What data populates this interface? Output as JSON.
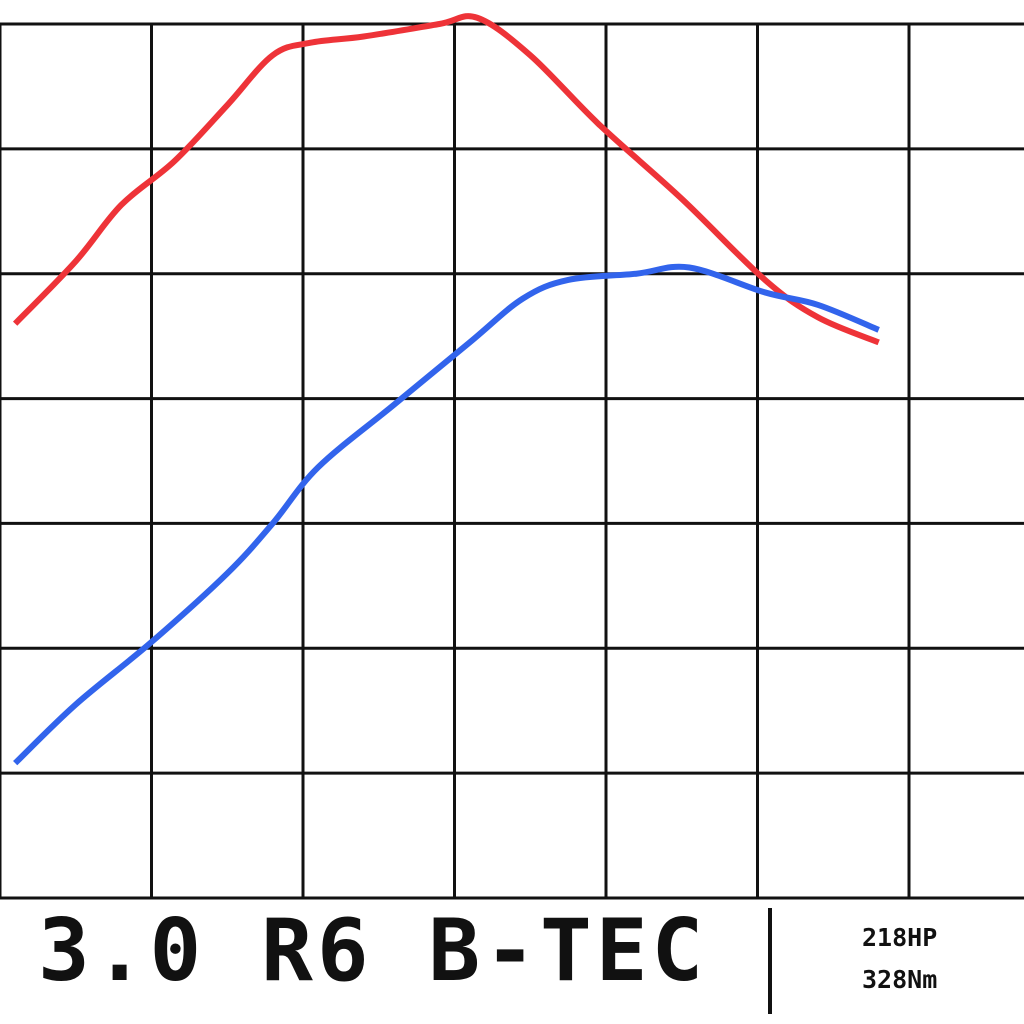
{
  "title": "3.0 R6 B-TEC",
  "specs": {
    "power": "218HP",
    "torque": "328Nm"
  },
  "colors": {
    "grid": "#111111",
    "torque_line": "#ee3338",
    "power_line": "#3264ec",
    "background": "#ffffff"
  },
  "chart_data": {
    "type": "line",
    "grid": true,
    "grid_columns": 7,
    "grid_rows": 7,
    "xlim": [
      0,
      6.8
    ],
    "ylim": [
      0,
      7
    ],
    "series": [
      {
        "key": "torque",
        "color": "#ee3338",
        "points": [
          [
            0.1,
            4.6
          ],
          [
            0.5,
            5.1
          ],
          [
            0.8,
            5.55
          ],
          [
            1.15,
            5.9
          ],
          [
            1.5,
            6.35
          ],
          [
            1.8,
            6.75
          ],
          [
            2.05,
            6.85
          ],
          [
            2.4,
            6.9
          ],
          [
            2.9,
            7.0
          ],
          [
            3.15,
            7.05
          ],
          [
            3.5,
            6.75
          ],
          [
            3.95,
            6.2
          ],
          [
            4.5,
            5.6
          ],
          [
            5.05,
            4.95
          ],
          [
            5.4,
            4.65
          ],
          [
            5.8,
            4.45
          ]
        ]
      },
      {
        "key": "power",
        "color": "#3264ec",
        "points": [
          [
            0.1,
            1.08
          ],
          [
            0.5,
            1.55
          ],
          [
            1.0,
            2.05
          ],
          [
            1.5,
            2.6
          ],
          [
            1.8,
            3.0
          ],
          [
            2.1,
            3.45
          ],
          [
            2.6,
            3.95
          ],
          [
            3.1,
            4.45
          ],
          [
            3.45,
            4.8
          ],
          [
            3.75,
            4.95
          ],
          [
            4.2,
            5.0
          ],
          [
            4.55,
            5.05
          ],
          [
            5.05,
            4.85
          ],
          [
            5.4,
            4.75
          ],
          [
            5.8,
            4.55
          ]
        ]
      }
    ]
  }
}
